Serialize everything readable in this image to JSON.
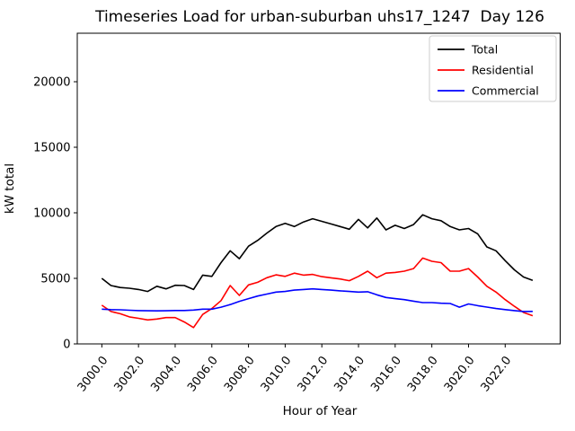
{
  "chart_data": {
    "type": "line",
    "title": "Timeseries Load for urban-suburban uhs17_1247  Day 126",
    "xlabel": "Hour of Year",
    "ylabel": "kW total",
    "xlim": [
      2998.66,
      3025.0
    ],
    "ylim": [
      0,
      23700
    ],
    "grid": false,
    "legend_position": "upper right",
    "x_tick_labels": [
      "3000.0",
      "3002.0",
      "3004.0",
      "3006.0",
      "3008.0",
      "3010.0",
      "3012.0",
      "3014.0",
      "3016.0",
      "3018.0",
      "3020.0",
      "3022.0"
    ],
    "x_tick_values": [
      3000,
      3002,
      3004,
      3006,
      3008,
      3010,
      3012,
      3014,
      3016,
      3018,
      3020,
      3022
    ],
    "y_tick_labels": [
      "0",
      "5000",
      "10000",
      "15000",
      "20000"
    ],
    "y_tick_values": [
      0,
      5000,
      10000,
      15000,
      20000
    ],
    "x_start": 3000.0,
    "x_step": 0.5,
    "series": [
      {
        "name": "Total",
        "color": "#000000",
        "values": [
          5000,
          4450,
          4300,
          4250,
          4150,
          4000,
          4400,
          4200,
          4470,
          4450,
          4150,
          5250,
          5150,
          6200,
          7100,
          6500,
          7450,
          7900,
          8450,
          8950,
          9200,
          8950,
          9300,
          9550,
          9350,
          9150,
          8950,
          8750,
          9500,
          8850,
          9600,
          8700,
          9050,
          8800,
          9100,
          9850,
          9550,
          9400,
          8950,
          8700,
          8800,
          8400,
          7400,
          7100,
          6350,
          5650,
          5100,
          4850
        ]
      },
      {
        "name": "Residential",
        "color": "#ff0000",
        "values": [
          2950,
          2470,
          2300,
          2060,
          1950,
          1830,
          1900,
          2010,
          2010,
          1670,
          1250,
          2250,
          2700,
          3300,
          4450,
          3700,
          4500,
          4700,
          5050,
          5270,
          5150,
          5400,
          5250,
          5300,
          5130,
          5040,
          4950,
          4820,
          5150,
          5550,
          5050,
          5400,
          5450,
          5550,
          5750,
          6550,
          6300,
          6200,
          5550,
          5550,
          5750,
          5100,
          4400,
          3950,
          3380,
          2870,
          2400,
          2150
        ]
      },
      {
        "name": "Commercial",
        "color": "#0000ff",
        "values": [
          2650,
          2620,
          2600,
          2570,
          2540,
          2530,
          2520,
          2530,
          2550,
          2550,
          2580,
          2650,
          2650,
          2800,
          3000,
          3250,
          3450,
          3650,
          3800,
          3950,
          4000,
          4100,
          4150,
          4200,
          4150,
          4100,
          4050,
          4000,
          3950,
          3980,
          3750,
          3540,
          3450,
          3380,
          3260,
          3150,
          3150,
          3100,
          3080,
          2800,
          3050,
          2920,
          2810,
          2700,
          2620,
          2540,
          2470,
          2480
        ]
      }
    ]
  }
}
